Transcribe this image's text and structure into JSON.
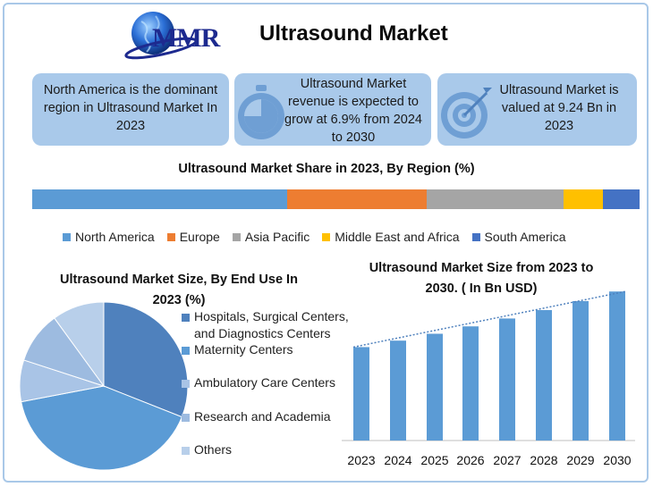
{
  "header": {
    "logo_text": "MMR",
    "title": "Ultrasound Market"
  },
  "cards": [
    {
      "text": "North America is the dominant region in Ultrasound Market In 2023",
      "icon": "none"
    },
    {
      "text": "Ultrasound Market revenue is expected to grow at 6.9% from 2024 to 2030",
      "icon": "stopwatch-icon"
    },
    {
      "text": "Ultrasound Market is valued at 9.24 Bn in 2023",
      "icon": "target-icon"
    }
  ],
  "chart_data": [
    {
      "type": "bar",
      "orientation": "stacked-horizontal",
      "title": "Ultrasound Market Share in 2023, By Region (%)",
      "categories": [
        "North America",
        "Europe",
        "Asia Pacific",
        "Middle East and Africa",
        "South America"
      ],
      "values": [
        42,
        23,
        22.5,
        6.5,
        6
      ],
      "colors": [
        "#5b9bd5",
        "#ed7d31",
        "#a5a5a5",
        "#ffc000",
        "#4472c4"
      ],
      "legend": "bottom"
    },
    {
      "type": "pie",
      "title": "Ultrasound Market Size, By End Use In 2023 (%)",
      "categories": [
        "Hospitals, Surgical Centers, and Diagnostics Centers",
        "Maternity Centers",
        "Ambulatory Care Centers",
        "Research and Academia",
        "Others"
      ],
      "values": [
        31,
        41,
        8,
        10,
        10
      ],
      "colors": [
        "#4f81bd",
        "#5b9bd5",
        "#a9c4e6",
        "#9dbbe0",
        "#b8cfea"
      ],
      "legend": "right"
    },
    {
      "type": "bar",
      "title": "Ultrasound Market Size from 2023 to 2030. ( In Bn  USD)",
      "categories": [
        "2023",
        "2024",
        "2025",
        "2026",
        "2027",
        "2028",
        "2029",
        "2030"
      ],
      "values": [
        9.24,
        9.88,
        10.56,
        11.29,
        12.07,
        12.9,
        13.79,
        14.74
      ],
      "ylim": [
        0,
        15.2
      ],
      "trendline": true,
      "color": "#5b9bd5"
    }
  ]
}
